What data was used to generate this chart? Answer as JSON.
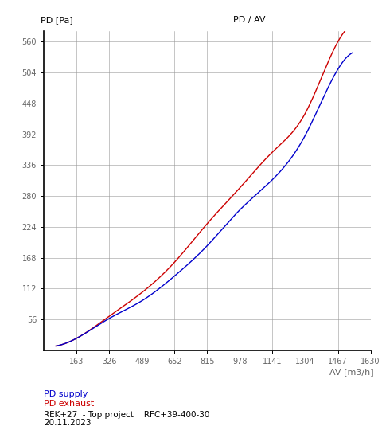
{
  "title_left": "PD [Pa]",
  "title_center": "PD / AV",
  "xlabel": "AV [m3/h]",
  "x_ticks": [
    163,
    326,
    489,
    652,
    815,
    978,
    1141,
    1304,
    1467,
    1630
  ],
  "y_ticks": [
    56,
    112,
    168,
    224,
    280,
    336,
    392,
    448,
    504,
    560
  ],
  "xlim": [
    0,
    1630
  ],
  "ylim": [
    0,
    580
  ],
  "supply_color": "#0000cc",
  "exhaust_color": "#cc0000",
  "legend_supply": "PD supply",
  "legend_exhaust": "PD exhaust",
  "annotation_line1": "REK+27  - Top project    RFC+39-400-30",
  "annotation_line2": "20.11.2023",
  "bg_color": "#ffffff",
  "grid_color": "#999999",
  "supply_points_x": [
    60,
    163,
    326,
    489,
    652,
    815,
    978,
    1141,
    1304,
    1467,
    1540
  ],
  "supply_points_y": [
    8,
    22,
    58,
    90,
    135,
    190,
    255,
    310,
    390,
    510,
    540
  ],
  "exhaust_points_x": [
    60,
    163,
    326,
    489,
    652,
    815,
    978,
    1141,
    1304,
    1467,
    1540
  ],
  "exhaust_points_y": [
    8,
    22,
    62,
    105,
    160,
    230,
    295,
    360,
    430,
    560,
    590
  ]
}
